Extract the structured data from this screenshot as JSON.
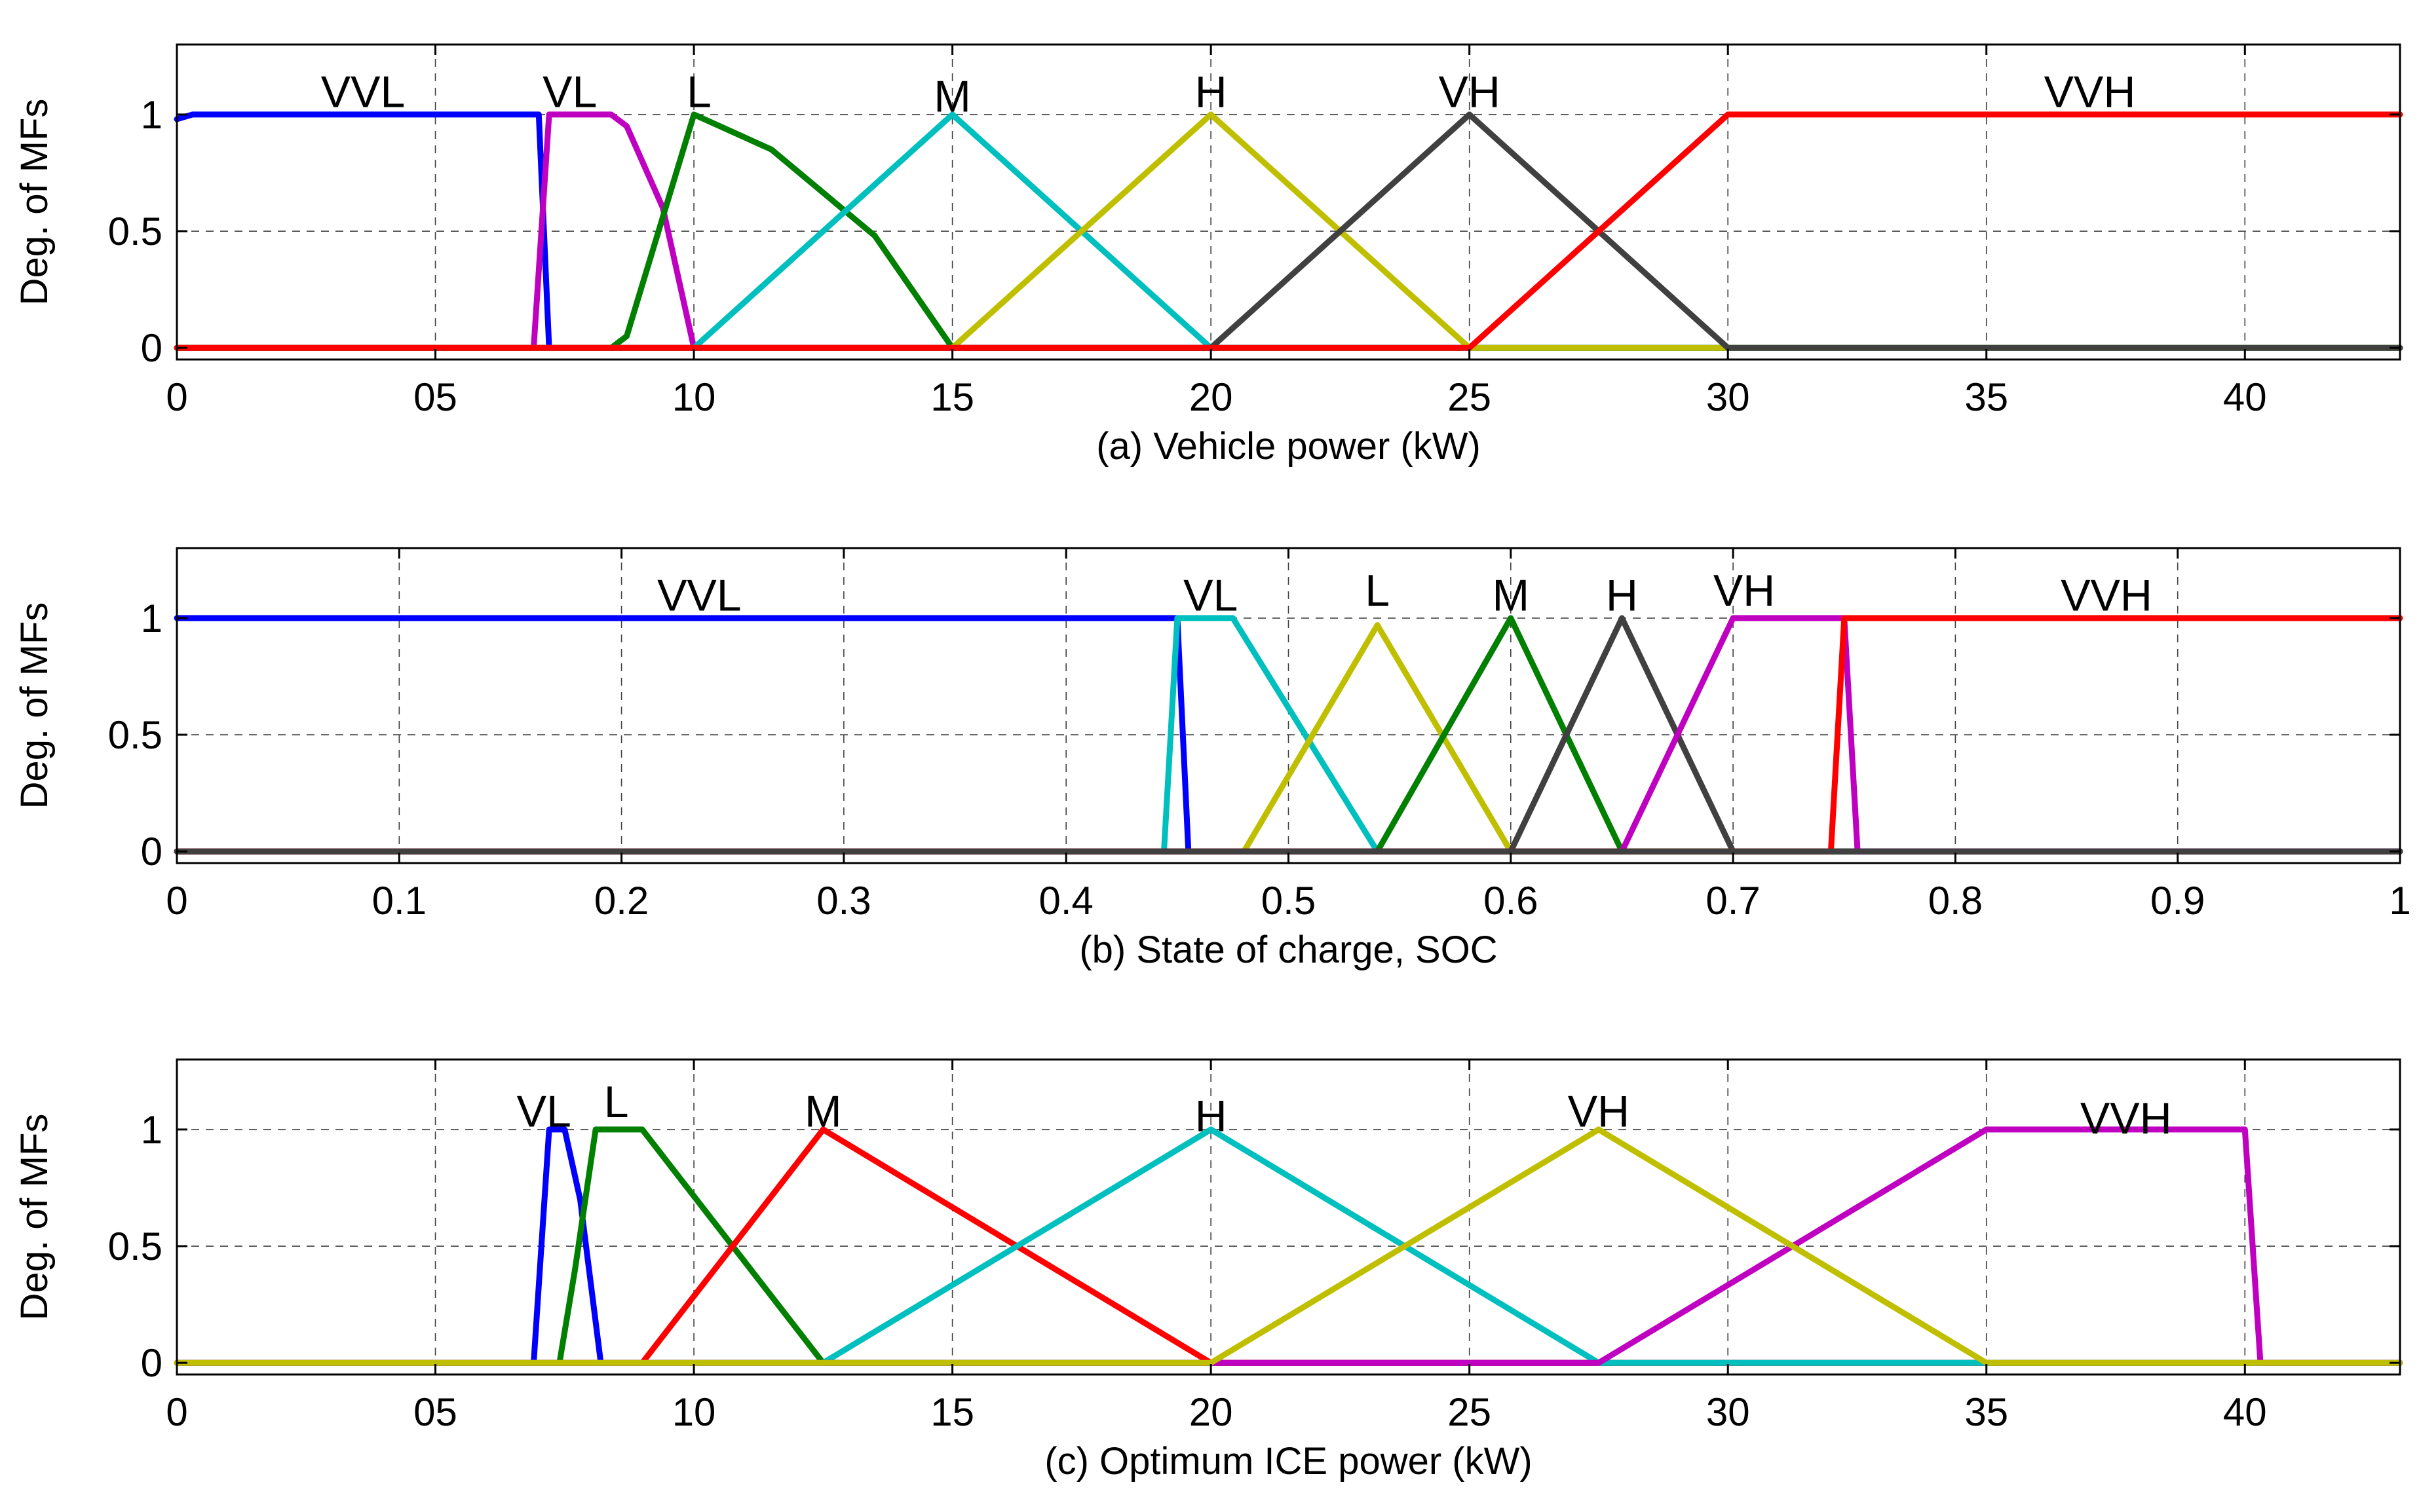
{
  "chart_data": [
    {
      "type": "line",
      "title": "",
      "xlabel": "(a) Vehicle power (kW)",
      "ylabel": "Deg. of MFs",
      "xlim": [
        0,
        43
      ],
      "ylim": [
        -0.05,
        1.3
      ],
      "xticks": [
        0,
        5,
        10,
        15,
        20,
        25,
        30,
        35,
        40
      ],
      "xtick_labels": [
        "0",
        "05",
        "10",
        "15",
        "20",
        "25",
        "30",
        "35",
        "40"
      ],
      "yticks": [
        0,
        0.5,
        1
      ],
      "ytick_labels": [
        "0",
        "0.5",
        "1"
      ],
      "grid": true,
      "series": [
        {
          "name": "VVL",
          "color": "#0000ff",
          "x": [
            0,
            0.3,
            7,
            7.2,
            43
          ],
          "y": [
            0.98,
            1,
            1,
            0,
            0
          ]
        },
        {
          "name": "VL",
          "color": "#c000c0",
          "x": [
            0,
            6.9,
            7.2,
            8.4,
            8.7,
            9.4,
            10,
            43
          ],
          "y": [
            0,
            0,
            1,
            1,
            0.95,
            0.6,
            0,
            0
          ]
        },
        {
          "name": "L",
          "color": "#007f00",
          "x": [
            0,
            8.4,
            8.7,
            10,
            11.5,
            13.5,
            15,
            43
          ],
          "y": [
            0,
            0,
            0.05,
            1,
            0.85,
            0.48,
            0,
            0
          ]
        },
        {
          "name": "M",
          "color": "#00bfbf",
          "x": [
            0,
            10,
            15,
            20,
            43
          ],
          "y": [
            0,
            0,
            1,
            0,
            0
          ]
        },
        {
          "name": "H",
          "color": "#bfbf00",
          "x": [
            0,
            15,
            20,
            25,
            25.5,
            43
          ],
          "y": [
            0,
            0,
            1,
            0,
            0,
            0
          ]
        },
        {
          "name": "VH",
          "color": "#404040",
          "x": [
            0,
            20,
            25,
            30,
            43
          ],
          "y": [
            0,
            0,
            1,
            0,
            0
          ]
        },
        {
          "name": "VVH",
          "color": "#ff0000",
          "x": [
            0,
            25,
            30,
            43
          ],
          "y": [
            0,
            0,
            1,
            1
          ]
        }
      ],
      "labels": [
        {
          "text": "VVL",
          "x": 3.6,
          "y": 1.1
        },
        {
          "text": "VL",
          "x": 7.6,
          "y": 1.1
        },
        {
          "text": "L",
          "x": 10.1,
          "y": 1.1
        },
        {
          "text": "M",
          "x": 15.0,
          "y": 1.08
        },
        {
          "text": "H",
          "x": 20.0,
          "y": 1.1
        },
        {
          "text": "VH",
          "x": 25.0,
          "y": 1.1
        },
        {
          "text": "VVH",
          "x": 37.0,
          "y": 1.1
        }
      ]
    },
    {
      "type": "line",
      "title": "",
      "xlabel": "(b) State of charge, SOC",
      "ylabel": "Deg. of MFs",
      "xlim": [
        0,
        1
      ],
      "ylim": [
        -0.05,
        1.3
      ],
      "xticks": [
        0,
        0.1,
        0.2,
        0.3,
        0.4,
        0.5,
        0.6,
        0.7,
        0.8,
        0.9,
        1
      ],
      "xtick_labels": [
        "0",
        "0.1",
        "0.2",
        "0.3",
        "0.4",
        "0.5",
        "0.6",
        "0.7",
        "0.8",
        "0.9",
        "1"
      ],
      "yticks": [
        0,
        0.5,
        1
      ],
      "ytick_labels": [
        "0",
        "0.5",
        "1"
      ],
      "grid": true,
      "series": [
        {
          "name": "VVL",
          "color": "#0000ff",
          "x": [
            0,
            0.45,
            0.455,
            1
          ],
          "y": [
            1,
            1,
            0,
            0
          ]
        },
        {
          "name": "VL",
          "color": "#00bfbf",
          "x": [
            0,
            0.444,
            0.45,
            0.475,
            0.54,
            1
          ],
          "y": [
            0,
            0,
            1,
            1,
            0,
            0
          ]
        },
        {
          "name": "L",
          "color": "#bfbf00",
          "x": [
            0,
            0.48,
            0.54,
            0.6,
            1
          ],
          "y": [
            0,
            0,
            0.97,
            0,
            0
          ]
        },
        {
          "name": "M",
          "color": "#007f00",
          "x": [
            0,
            0.54,
            0.6,
            0.65,
            1
          ],
          "y": [
            0,
            0,
            1,
            0,
            0
          ]
        },
        {
          "name": "H",
          "color": "#404040",
          "x": [
            0,
            0.6,
            0.65,
            0.7,
            1
          ],
          "y": [
            0,
            0,
            1,
            0,
            0
          ]
        },
        {
          "name": "VH",
          "color": "#c000c0",
          "x": [
            0,
            0.65,
            0.7,
            0.75,
            0.756,
            1
          ],
          "y": [
            0,
            0,
            1,
            1,
            0,
            0
          ]
        },
        {
          "name": "VVH",
          "color": "#ff0000",
          "x": [
            0,
            0.744,
            0.75,
            1
          ],
          "y": [
            0,
            0,
            1,
            1
          ]
        },
        {
          "name": "baseline",
          "color": "#404040",
          "x": [
            0,
            1
          ],
          "y": [
            0,
            0
          ]
        }
      ],
      "labels": [
        {
          "text": "VVL",
          "x": 0.235,
          "y": 1.1
        },
        {
          "text": "VL",
          "x": 0.465,
          "y": 1.1
        },
        {
          "text": "L",
          "x": 0.54,
          "y": 1.12
        },
        {
          "text": "M",
          "x": 0.6,
          "y": 1.1
        },
        {
          "text": "H",
          "x": 0.65,
          "y": 1.1
        },
        {
          "text": "VH",
          "x": 0.705,
          "y": 1.12
        },
        {
          "text": "VVH",
          "x": 0.868,
          "y": 1.1
        }
      ]
    },
    {
      "type": "line",
      "title": "",
      "xlabel": "(c) Optimum ICE power (kW)",
      "ylabel": "Deg. of MFs",
      "xlim": [
        0,
        43
      ],
      "ylim": [
        -0.05,
        1.3
      ],
      "xticks": [
        0,
        5,
        10,
        15,
        20,
        25,
        30,
        35,
        40
      ],
      "xtick_labels": [
        "0",
        "05",
        "10",
        "15",
        "20",
        "25",
        "30",
        "35",
        "40"
      ],
      "yticks": [
        0,
        0.5,
        1
      ],
      "ytick_labels": [
        "0",
        "0.5",
        "1"
      ],
      "grid": true,
      "series": [
        {
          "name": "VL",
          "color": "#0000ff",
          "x": [
            0,
            6.9,
            7.2,
            7.5,
            7.8,
            8.2,
            43
          ],
          "y": [
            0,
            0,
            1,
            1,
            0.7,
            0,
            0
          ]
        },
        {
          "name": "L",
          "color": "#007f00",
          "x": [
            0,
            7.4,
            7.7,
            8.1,
            9.0,
            12.5,
            43
          ],
          "y": [
            0,
            0,
            0.4,
            1,
            1,
            0,
            0
          ]
        },
        {
          "name": "M",
          "color": "#ff0000",
          "x": [
            0,
            9.0,
            12.5,
            20,
            43
          ],
          "y": [
            0,
            0,
            1,
            0,
            0
          ]
        },
        {
          "name": "H",
          "color": "#00bfbf",
          "x": [
            0,
            12.5,
            20,
            27.5,
            43
          ],
          "y": [
            0,
            0,
            1,
            0,
            0
          ]
        },
        {
          "name": "VVH",
          "color": "#c000c0",
          "x": [
            0,
            27.5,
            35,
            40,
            40.3,
            43
          ],
          "y": [
            0,
            0,
            1,
            1,
            0,
            0
          ]
        },
        {
          "name": "VH",
          "color": "#bfbf00",
          "x": [
            0,
            20,
            27.5,
            35,
            43
          ],
          "y": [
            0,
            0,
            1,
            0,
            0
          ]
        }
      ],
      "labels": [
        {
          "text": "VL",
          "x": 7.1,
          "y": 1.08
        },
        {
          "text": "L",
          "x": 8.5,
          "y": 1.12
        },
        {
          "text": "M",
          "x": 12.5,
          "y": 1.08
        },
        {
          "text": "H",
          "x": 20.0,
          "y": 1.06
        },
        {
          "text": "VH",
          "x": 27.5,
          "y": 1.08
        },
        {
          "text": "VVH",
          "x": 37.7,
          "y": 1.05
        }
      ]
    }
  ]
}
